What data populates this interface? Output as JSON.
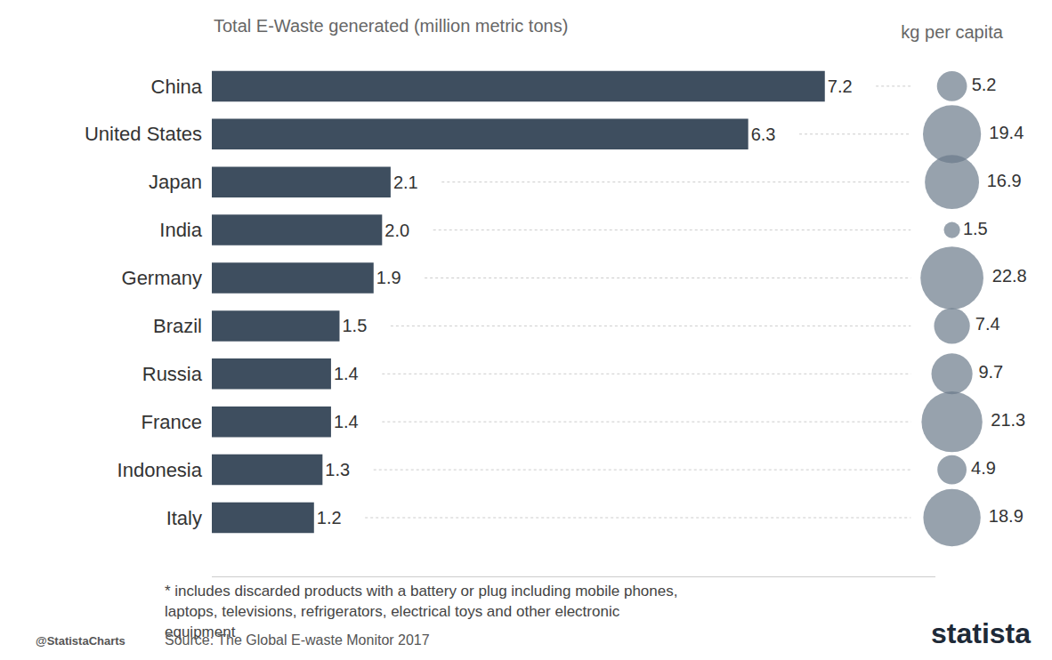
{
  "chart_data": [
    {
      "type": "bar",
      "orientation": "horizontal",
      "title": "Total E-Waste generated (million metric tons)",
      "categories": [
        "China",
        "United States",
        "Japan",
        "India",
        "Germany",
        "Brazil",
        "Russia",
        "France",
        "Indonesia",
        "Italy"
      ],
      "values": [
        7.2,
        6.3,
        2.1,
        2.0,
        1.9,
        1.5,
        1.4,
        1.4,
        1.3,
        1.2
      ],
      "value_labels": [
        "7.2",
        "6.3",
        "2.1",
        "2.0",
        "1.9",
        "1.5",
        "1.4",
        "1.4",
        "1.3",
        "1.2"
      ],
      "color": "#3e4e5f",
      "data_labels": true,
      "xlim": [
        0,
        8.5
      ],
      "tick_labels": "y",
      "grid": false,
      "annotations": [
        "* includes discarded products with a battery or plug including mobile phones, laptops, televisions, refrigerators, electrical toys and other electronic equipment",
        "Source: The Global E-waste Monitor 2017",
        "@StatistaCharts",
        "statista"
      ]
    },
    {
      "type": "scatter",
      "title": "kg per capita",
      "categories": [
        "China",
        "United States",
        "Japan",
        "India",
        "Germany",
        "Brazil",
        "Russia",
        "France",
        "Indonesia",
        "Italy"
      ],
      "values": [
        5.2,
        19.4,
        16.9,
        1.5,
        22.8,
        7.4,
        9.7,
        21.3,
        4.9,
        18.9
      ],
      "color": "#6b7a8a",
      "marker": "circle",
      "data_labels": true,
      "tick_labels": false
    }
  ]
}
